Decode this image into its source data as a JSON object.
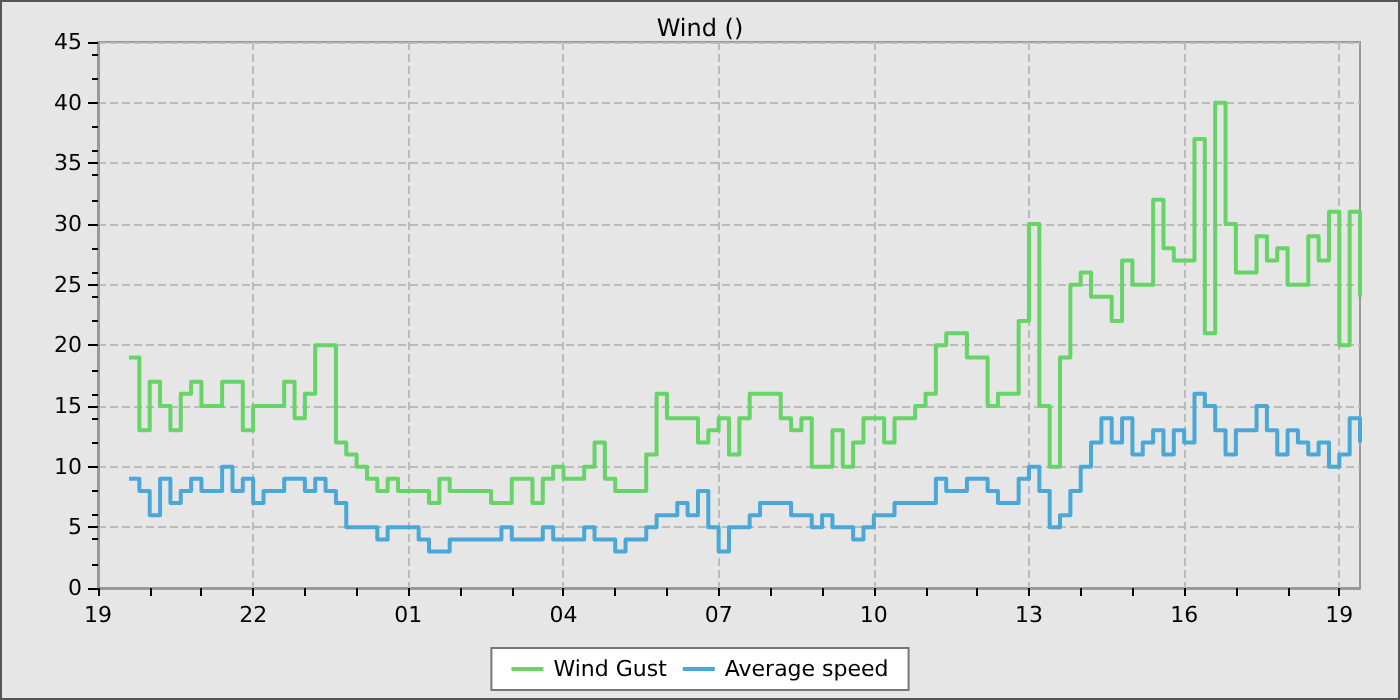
{
  "chart_data": {
    "type": "step",
    "title": "Wind ()",
    "categories": [
      "19",
      null,
      null,
      null,
      null,
      null,
      null,
      null,
      null,
      null,
      null,
      null,
      null,
      null,
      null,
      "22",
      null,
      null,
      null,
      null,
      null,
      null,
      null,
      null,
      null,
      null,
      null,
      null,
      null,
      null,
      "01",
      null,
      null,
      null,
      null,
      null,
      null,
      null,
      null,
      null,
      null,
      null,
      null,
      null,
      null,
      "04",
      null,
      null,
      null,
      null,
      null,
      null,
      null,
      null,
      null,
      null,
      null,
      null,
      null,
      null,
      "07",
      null,
      null,
      null,
      null,
      null,
      null,
      null,
      null,
      null,
      null,
      null,
      null,
      null,
      null,
      "10",
      null,
      null,
      null,
      null,
      null,
      null,
      null,
      null,
      null,
      null,
      null,
      null,
      null,
      null,
      "13",
      null,
      null,
      null,
      null,
      null,
      null,
      null,
      null,
      null,
      null,
      null,
      null,
      null,
      null,
      "16",
      null,
      null,
      null,
      null,
      null,
      null,
      null,
      null,
      null,
      null,
      null,
      null,
      null,
      null,
      "19",
      null,
      null
    ],
    "ylim": [
      0,
      45
    ],
    "yticks": [
      0,
      5,
      10,
      15,
      20,
      25,
      30,
      35,
      40,
      45
    ],
    "grid": true,
    "legend": "bottom",
    "marker": "none",
    "line_style": "solid",
    "series": [
      {
        "name": "Wind Gust",
        "color": "#66d466",
        "values": [
          null,
          null,
          null,
          19,
          13,
          17,
          15,
          13,
          16,
          17,
          15,
          15,
          17,
          17,
          13,
          15,
          15,
          15,
          17,
          14,
          16,
          20,
          20,
          12,
          11,
          10,
          9,
          8,
          9,
          8,
          8,
          8,
          7,
          9,
          8,
          8,
          8,
          8,
          7,
          7,
          9,
          9,
          7,
          9,
          10,
          9,
          9,
          10,
          12,
          9,
          8,
          8,
          8,
          11,
          16,
          14,
          14,
          14,
          12,
          13,
          14,
          11,
          14,
          16,
          16,
          16,
          14,
          13,
          14,
          10,
          10,
          13,
          10,
          12,
          14,
          14,
          12,
          14,
          14,
          15,
          16,
          20,
          21,
          21,
          19,
          19,
          15,
          16,
          16,
          22,
          30,
          15,
          10,
          19,
          25,
          26,
          24,
          24,
          22,
          27,
          25,
          25,
          32,
          28,
          27,
          27,
          37,
          21,
          40,
          30,
          26,
          26,
          29,
          27,
          28,
          25,
          25,
          29,
          27,
          31,
          20,
          31,
          24
        ]
      },
      {
        "name": "Average speed",
        "color": "#4aa8d8",
        "values": [
          null,
          null,
          null,
          9,
          8,
          6,
          9,
          7,
          8,
          9,
          8,
          8,
          10,
          8,
          9,
          7,
          8,
          8,
          9,
          9,
          8,
          9,
          8,
          7,
          5,
          5,
          5,
          4,
          5,
          5,
          5,
          4,
          3,
          3,
          4,
          4,
          4,
          4,
          4,
          5,
          4,
          4,
          4,
          5,
          4,
          4,
          4,
          5,
          4,
          4,
          3,
          4,
          4,
          5,
          6,
          6,
          7,
          6,
          8,
          5,
          3,
          5,
          5,
          6,
          7,
          7,
          7,
          6,
          6,
          5,
          6,
          5,
          5,
          4,
          5,
          6,
          6,
          7,
          7,
          7,
          7,
          9,
          8,
          8,
          9,
          9,
          8,
          7,
          7,
          9,
          10,
          8,
          5,
          6,
          8,
          10,
          12,
          14,
          12,
          14,
          11,
          12,
          13,
          11,
          13,
          12,
          16,
          15,
          13,
          11,
          13,
          13,
          15,
          13,
          11,
          13,
          12,
          11,
          12,
          10,
          11,
          14,
          12
        ]
      }
    ]
  }
}
